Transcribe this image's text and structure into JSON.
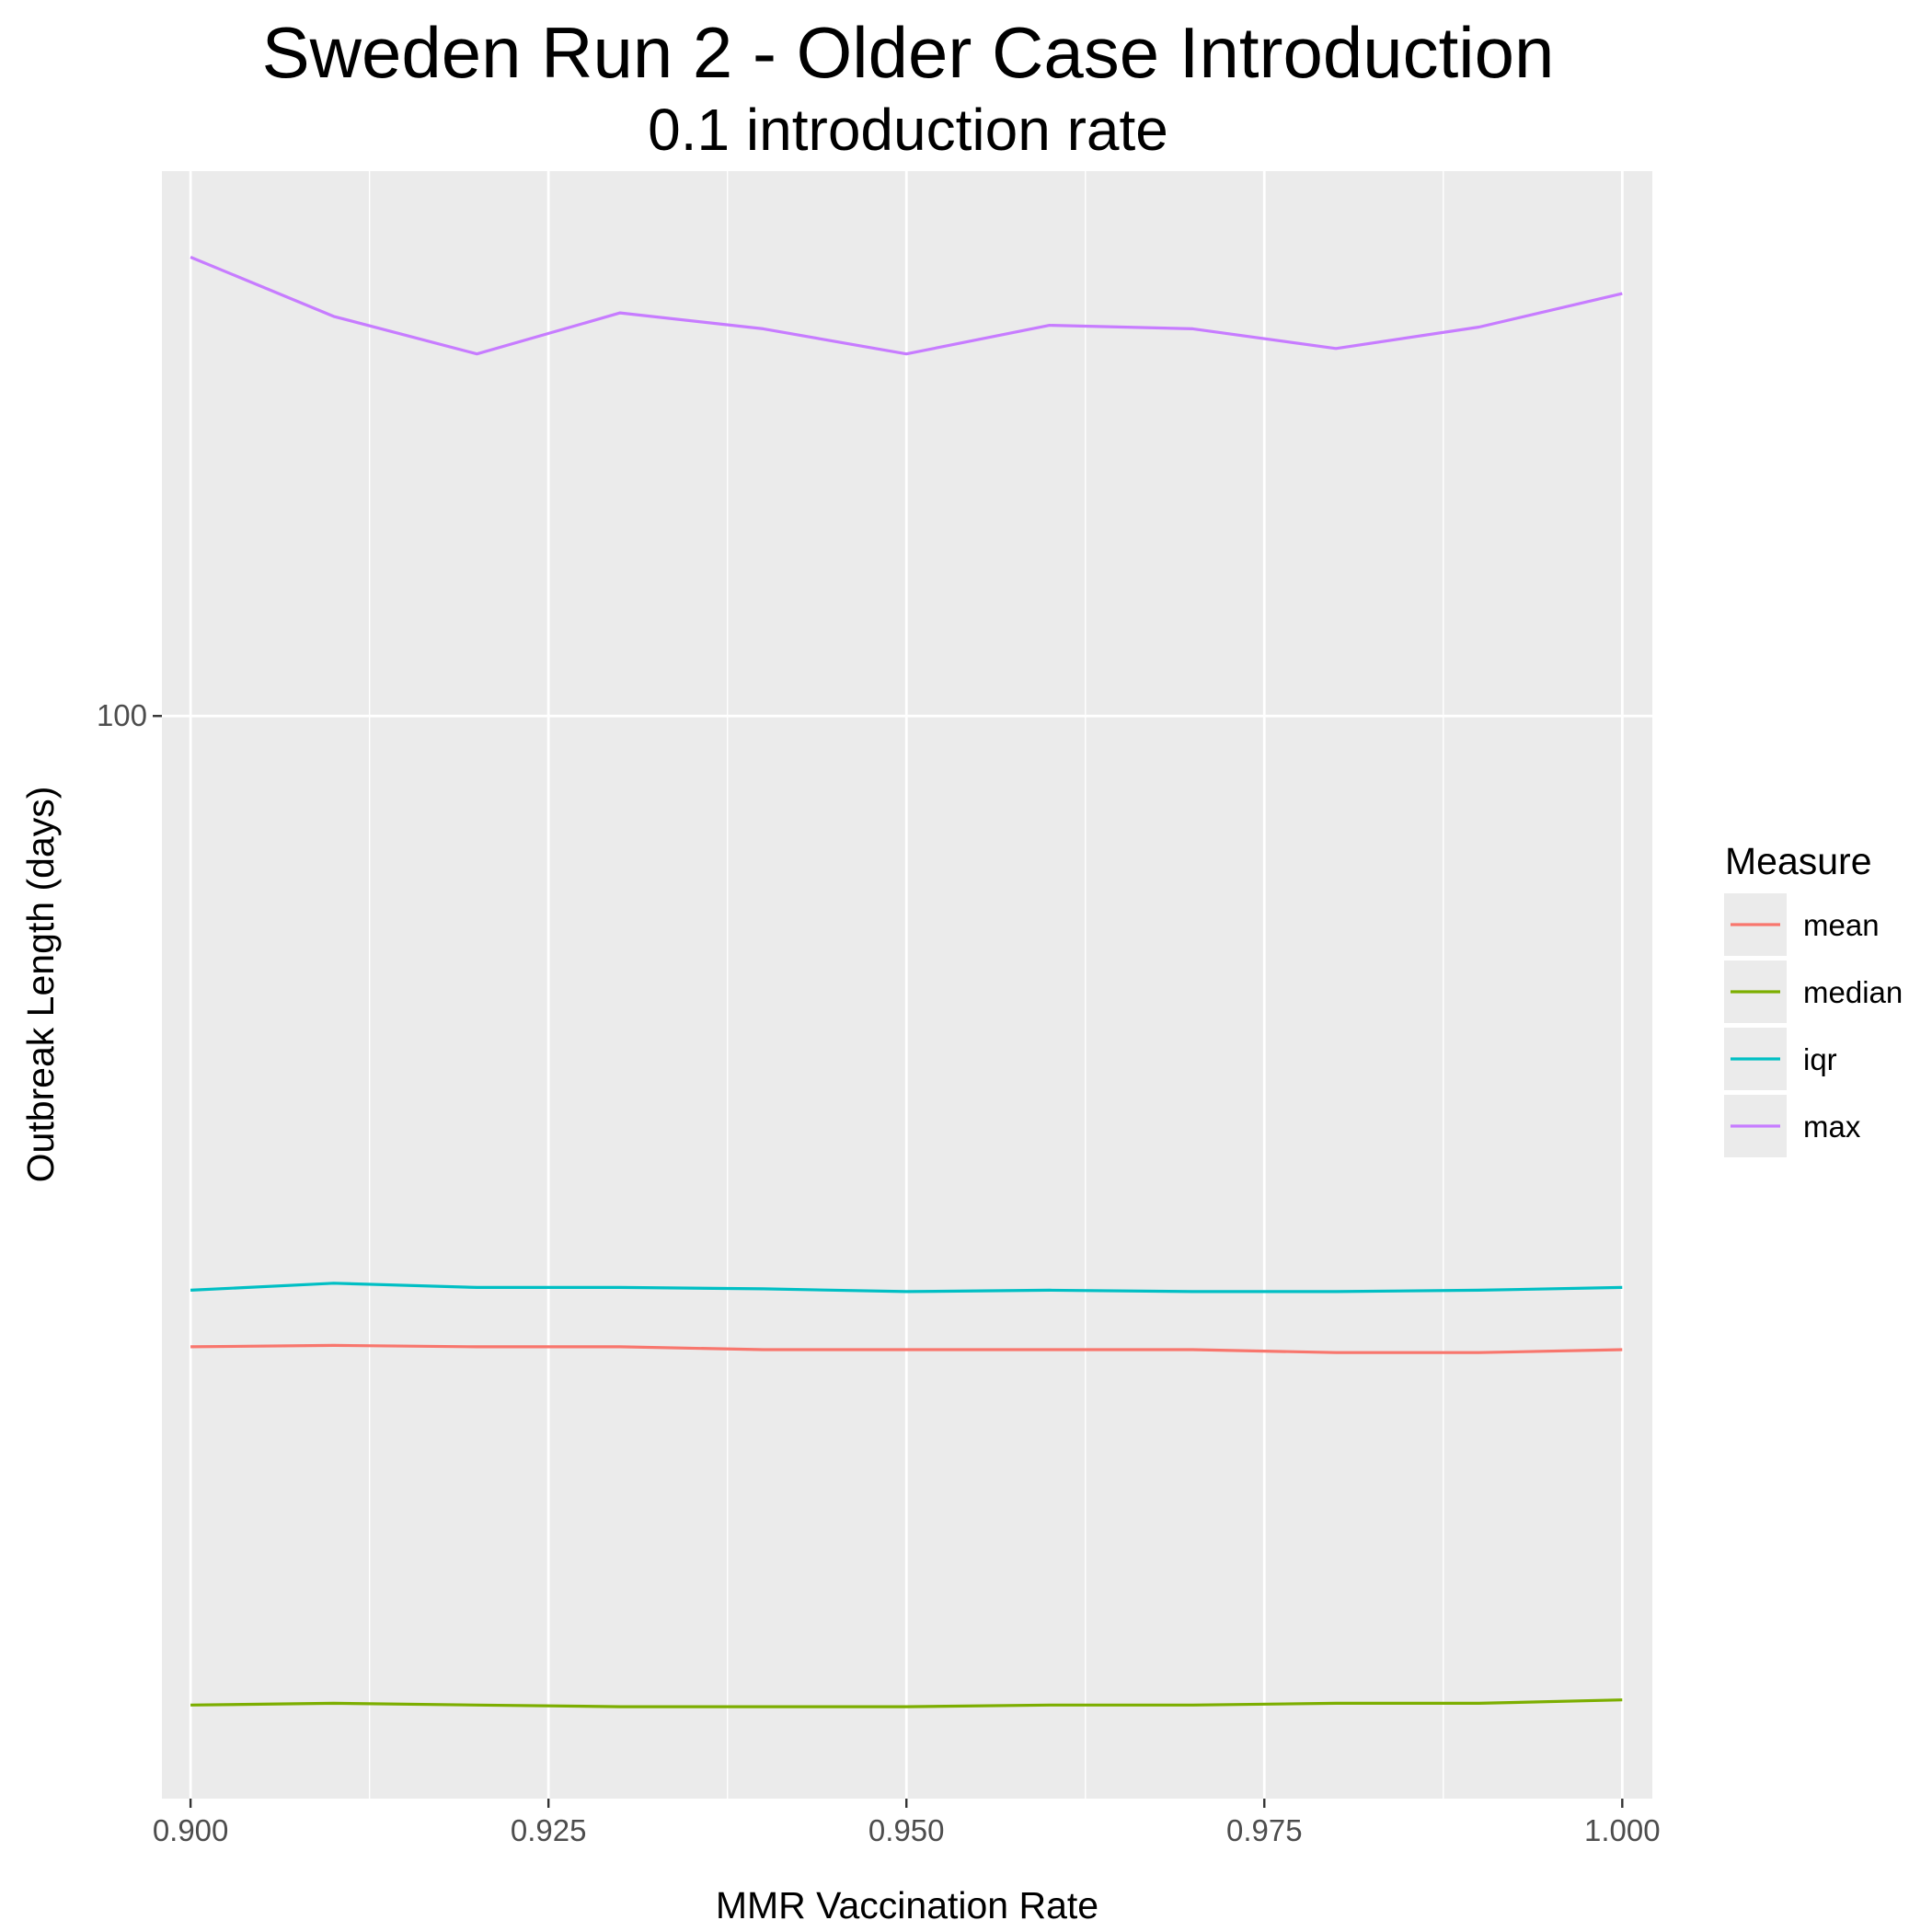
{
  "chart_data": {
    "type": "line",
    "title": "Sweden Run 2 - Older Case Introduction",
    "subtitle": "0.1 introduction rate",
    "xlabel": "MMR Vaccination Rate",
    "ylabel": "Outbreak Length (days)",
    "x": [
      0.9,
      0.91,
      0.92,
      0.93,
      0.94,
      0.95,
      0.96,
      0.97,
      0.98,
      0.99,
      1.0
    ],
    "xlim": [
      0.898,
      1.0021
    ],
    "ylim": [
      60.2,
      129.1
    ],
    "y_scale": "log10",
    "x_ticks": [
      0.9,
      0.925,
      0.95,
      0.975,
      1.0
    ],
    "x_tick_labels": [
      "0.900",
      "0.925",
      "0.950",
      "0.975",
      "1.000"
    ],
    "y_ticks": [
      100
    ],
    "y_tick_labels": [
      "100"
    ],
    "grid": true,
    "legend": {
      "title": "Measure",
      "position": "right"
    },
    "series": [
      {
        "name": "mean",
        "color": "#F8766D",
        "values": [
          74.4,
          74.45,
          74.4,
          74.4,
          74.3,
          74.3,
          74.3,
          74.3,
          74.2,
          74.2,
          74.3
        ]
      },
      {
        "name": "median",
        "color": "#7CAE00",
        "values": [
          62.9,
          62.95,
          62.9,
          62.85,
          62.85,
          62.85,
          62.9,
          62.9,
          62.95,
          62.95,
          63.05
        ]
      },
      {
        "name": "iqr",
        "color": "#00BFC4",
        "values": [
          76.4,
          76.65,
          76.5,
          76.5,
          76.45,
          76.35,
          76.4,
          76.35,
          76.35,
          76.4,
          76.5
        ]
      },
      {
        "name": "max",
        "color": "#C77CFF",
        "values": [
          124.0,
          120.6,
          118.5,
          120.8,
          119.9,
          118.5,
          120.1,
          119.9,
          118.8,
          120.0,
          121.9
        ]
      }
    ]
  }
}
